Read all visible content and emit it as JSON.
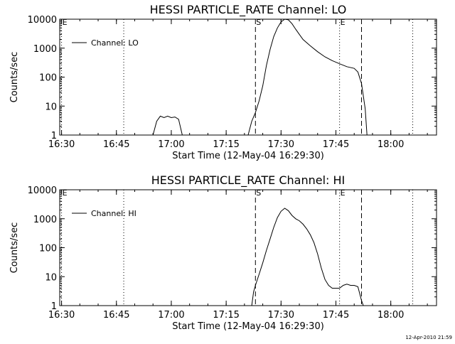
{
  "timestamp": "12-Apr-2010 21:59",
  "chart_data": [
    {
      "type": "line",
      "title": "HESSI PARTICLE_RATE Channel: LO",
      "xlabel": "Start Time (12-May-04 16:29:30)",
      "ylabel": "Counts/sec",
      "yscale": "log",
      "ylim": [
        1,
        10000
      ],
      "xlim": [
        "16:29:30",
        "18:12:30"
      ],
      "x_ticks": [
        "16:30",
        "16:45",
        "17:00",
        "17:15",
        "17:30",
        "17:45",
        "18:00"
      ],
      "y_ticks": [
        "1",
        "10",
        "100",
        "1000",
        "10000"
      ],
      "legend": {
        "label": "Channel: LO",
        "position": "top-left"
      },
      "markers": [
        {
          "label": "E",
          "time": "16:30",
          "style": "dotted"
        },
        {
          "label": "",
          "time": "16:47",
          "style": "dotted"
        },
        {
          "label": "S",
          "time": "17:23",
          "style": "dashed"
        },
        {
          "label": "E",
          "time": "17:46",
          "style": "dotted"
        },
        {
          "label": "",
          "time": "17:52",
          "style": "dashed"
        },
        {
          "label": "",
          "time": "18:06",
          "style": "dotted"
        }
      ],
      "series": [
        {
          "name": "Channel: LO",
          "segments": [
            [
              [
                "16:55:00",
                1
              ],
              [
                "16:56:00",
                3
              ],
              [
                "16:57:00",
                4.5
              ],
              [
                "16:58:00",
                4
              ],
              [
                "16:59:00",
                4.5
              ],
              [
                "17:00:00",
                4
              ],
              [
                "17:01:00",
                4.2
              ],
              [
                "17:02:00",
                3.5
              ],
              [
                "17:03:00",
                1
              ]
            ],
            [
              [
                "17:21:00",
                1
              ],
              [
                "17:22:00",
                3
              ],
              [
                "17:23:00",
                6
              ],
              [
                "17:24:00",
                15
              ],
              [
                "17:25:00",
                50
              ],
              [
                "17:26:00",
                250
              ],
              [
                "17:27:00",
                900
              ],
              [
                "17:28:00",
                2500
              ],
              [
                "17:29:00",
                5000
              ],
              [
                "17:30:00",
                8000
              ],
              [
                "17:31:00",
                10000
              ],
              [
                "17:32:00",
                9500
              ],
              [
                "17:33:00",
                7000
              ],
              [
                "17:34:00",
                4500
              ],
              [
                "17:35:00",
                3000
              ],
              [
                "17:36:00",
                2000
              ],
              [
                "17:38:00",
                1200
              ],
              [
                "17:40:00",
                750
              ],
              [
                "17:42:00",
                500
              ],
              [
                "17:44:00",
                370
              ],
              [
                "17:46:00",
                290
              ],
              [
                "17:48:00",
                230
              ],
              [
                "17:50:00",
                200
              ],
              [
                "17:51:00",
                150
              ],
              [
                "17:52:00",
                60
              ],
              [
                "17:53:00",
                8
              ],
              [
                "17:53:30",
                1
              ]
            ]
          ]
        }
      ]
    },
    {
      "type": "line",
      "title": "HESSI PARTICLE_RATE Channel: HI",
      "xlabel": "Start Time (12-May-04 16:29:30)",
      "ylabel": "Counts/sec",
      "yscale": "log",
      "ylim": [
        1,
        10000
      ],
      "xlim": [
        "16:29:30",
        "18:12:30"
      ],
      "x_ticks": [
        "16:30",
        "16:45",
        "17:00",
        "17:15",
        "17:30",
        "17:45",
        "18:00"
      ],
      "y_ticks": [
        "1",
        "10",
        "100",
        "1000",
        "10000"
      ],
      "legend": {
        "label": "Channel: HI",
        "position": "top-left"
      },
      "markers": [
        {
          "label": "E",
          "time": "16:30",
          "style": "dotted"
        },
        {
          "label": "",
          "time": "16:47",
          "style": "dotted"
        },
        {
          "label": "S",
          "time": "17:23",
          "style": "dashed"
        },
        {
          "label": "E",
          "time": "17:46",
          "style": "dotted"
        },
        {
          "label": "",
          "time": "17:52",
          "style": "dashed"
        },
        {
          "label": "",
          "time": "18:06",
          "style": "dotted"
        }
      ],
      "series": [
        {
          "name": "Channel: HI",
          "segments": [
            [
              [
                "17:22:00",
                1
              ],
              [
                "17:22:30",
                3
              ],
              [
                "17:23:00",
                5
              ],
              [
                "17:24:00",
                12
              ],
              [
                "17:25:00",
                30
              ],
              [
                "17:26:00",
                80
              ],
              [
                "17:27:00",
                200
              ],
              [
                "17:28:00",
                500
              ],
              [
                "17:29:00",
                1100
              ],
              [
                "17:30:00",
                1800
              ],
              [
                "17:31:00",
                2300
              ],
              [
                "17:32:00",
                1900
              ],
              [
                "17:33:00",
                1300
              ],
              [
                "17:34:00",
                1000
              ],
              [
                "17:35:00",
                850
              ],
              [
                "17:36:00",
                650
              ],
              [
                "17:37:00",
                450
              ],
              [
                "17:38:00",
                280
              ],
              [
                "17:39:00",
                150
              ],
              [
                "17:40:00",
                60
              ],
              [
                "17:41:00",
                20
              ],
              [
                "17:42:00",
                8
              ],
              [
                "17:43:00",
                5
              ],
              [
                "17:44:00",
                4
              ],
              [
                "17:45:00",
                4
              ],
              [
                "17:46:00",
                4
              ],
              [
                "17:47:00",
                5
              ],
              [
                "17:48:00",
                5.5
              ],
              [
                "17:49:00",
                5
              ],
              [
                "17:50:00",
                5
              ],
              [
                "17:51:00",
                4.5
              ],
              [
                "17:52:00",
                1.5
              ],
              [
                "17:52:30",
                1
              ]
            ]
          ]
        }
      ]
    }
  ]
}
